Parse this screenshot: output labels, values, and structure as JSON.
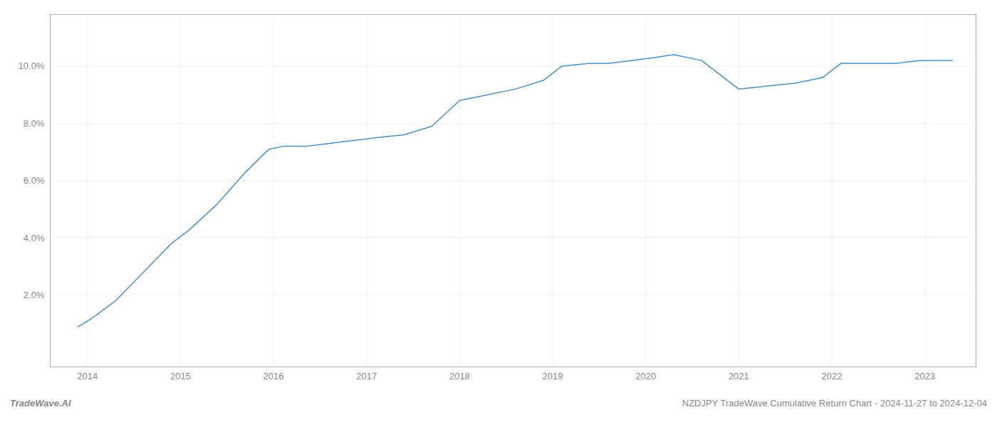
{
  "chart_data": {
    "type": "line",
    "x": [
      2013.9,
      2014.05,
      2014.3,
      2014.6,
      2014.9,
      2015.1,
      2015.4,
      2015.7,
      2015.95,
      2016.1,
      2016.35,
      2016.6,
      2016.85,
      2017.1,
      2017.4,
      2017.7,
      2018.0,
      2018.3,
      2018.6,
      2018.9,
      2019.1,
      2019.4,
      2019.6,
      2019.85,
      2020.1,
      2020.3,
      2020.6,
      2021.0,
      2021.3,
      2021.6,
      2021.9,
      2022.1,
      2022.4,
      2022.7,
      2022.95,
      2023.1,
      2023.3
    ],
    "values": [
      0.009,
      0.012,
      0.018,
      0.028,
      0.038,
      0.043,
      0.052,
      0.063,
      0.071,
      0.072,
      0.072,
      0.073,
      0.074,
      0.075,
      0.076,
      0.079,
      0.088,
      0.09,
      0.092,
      0.095,
      0.1,
      0.101,
      0.101,
      0.102,
      0.103,
      0.104,
      0.102,
      0.092,
      0.093,
      0.094,
      0.096,
      0.101,
      0.101,
      0.101,
      0.102,
      0.102,
      0.102
    ],
    "color": "#4a90c4",
    "xlim": [
      2013.6,
      2023.55
    ],
    "ylim": [
      -0.005,
      0.118
    ],
    "xticks": [
      2014,
      2015,
      2016,
      2017,
      2018,
      2019,
      2020,
      2021,
      2022,
      2023
    ],
    "yticks": [
      {
        "value": 0.02,
        "label": "2.0%"
      },
      {
        "value": 0.04,
        "label": "4.0%"
      },
      {
        "value": 0.06,
        "label": "6.0%"
      },
      {
        "value": 0.08,
        "label": "8.0%"
      },
      {
        "value": 0.1,
        "label": "10.0%"
      }
    ],
    "grid": true,
    "annotations": [
      "TradeWave.AI",
      "NZDJPY TradeWave Cumulative Return Chart - 2024-11-27 to 2024-12-04"
    ]
  }
}
